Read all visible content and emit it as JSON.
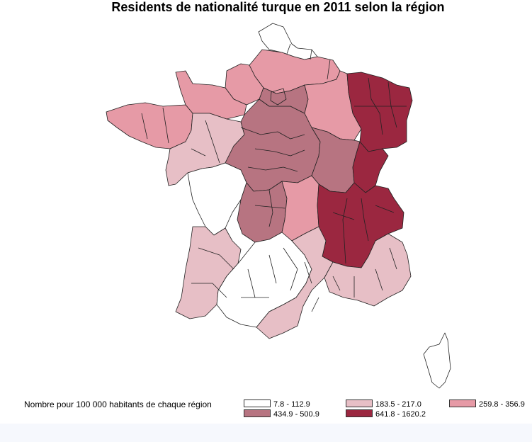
{
  "title": "Residents de nationalité turque en 2011 selon la région",
  "legend": {
    "title": "Nombre pour 100 000 habitants de chaque région",
    "classes": [
      {
        "label": "7.8 - 112.9",
        "color": "#ffffff"
      },
      {
        "label": "183.5 - 217.0",
        "color": "#e7bfc6"
      },
      {
        "label": "259.8 - 356.9",
        "color": "#e69aa6"
      },
      {
        "label": "434.9 - 500.9",
        "color": "#b77481"
      },
      {
        "label": "641.8 - 1620.2",
        "color": "#9b2740"
      }
    ]
  }
}
